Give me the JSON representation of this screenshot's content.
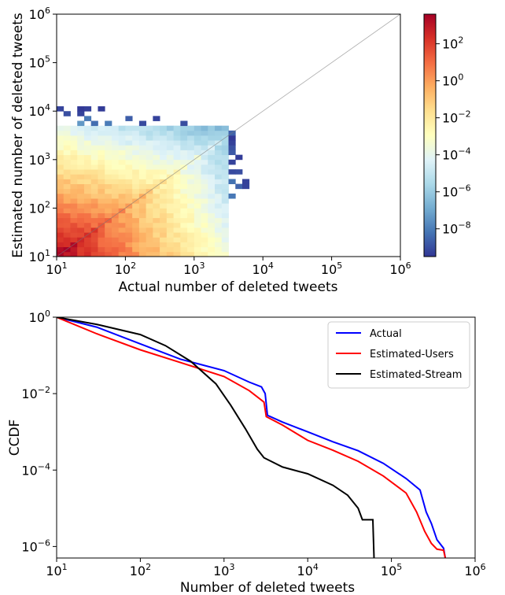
{
  "chart_data": [
    {
      "type": "heatmap",
      "xlabel": "Actual number of deleted tweets",
      "ylabel": "Estimated number of deleted tweets",
      "xscale": "log",
      "yscale": "log",
      "xlim": [
        10,
        1000000
      ],
      "ylim": [
        10,
        1000000
      ],
      "xticks": [
        {
          "base": "10",
          "exp": "1"
        },
        {
          "base": "10",
          "exp": "2"
        },
        {
          "base": "10",
          "exp": "3"
        },
        {
          "base": "10",
          "exp": "4"
        },
        {
          "base": "10",
          "exp": "5"
        },
        {
          "base": "10",
          "exp": "6"
        }
      ],
      "yticks": [
        {
          "base": "10",
          "exp": "1"
        },
        {
          "base": "10",
          "exp": "2"
        },
        {
          "base": "10",
          "exp": "3"
        },
        {
          "base": "10",
          "exp": "4"
        },
        {
          "base": "10",
          "exp": "5"
        },
        {
          "base": "10",
          "exp": "6"
        }
      ],
      "colorbar": {
        "scale": "log",
        "range_exp": [
          -9.5,
          3.6
        ],
        "colormap": "RdYlBu_r",
        "ticks": [
          {
            "base": "10",
            "exp": "2"
          },
          {
            "base": "10",
            "exp": "0"
          },
          {
            "base": "10",
            "exp": "−2"
          },
          {
            "base": "10",
            "exp": "−4"
          },
          {
            "base": "10",
            "exp": "−6"
          },
          {
            "base": "10",
            "exp": "−8"
          }
        ]
      },
      "density_description_log10": {
        "peak_near": [
          10,
          10
        ],
        "diagonal_line": true,
        "actual_cutoff": 3500,
        "estimated_cap": 5000
      },
      "grid": false
    },
    {
      "type": "line",
      "xlabel": "Number of deleted tweets",
      "ylabel": "CCDF",
      "xscale": "log",
      "yscale": "log",
      "xlim": [
        10,
        1000000
      ],
      "ylim": [
        5e-07,
        1
      ],
      "xticks": [
        {
          "base": "10",
          "exp": "1"
        },
        {
          "base": "10",
          "exp": "2"
        },
        {
          "base": "10",
          "exp": "3"
        },
        {
          "base": "10",
          "exp": "4"
        },
        {
          "base": "10",
          "exp": "5"
        },
        {
          "base": "10",
          "exp": "6"
        }
      ],
      "yticks": [
        {
          "base": "10",
          "exp": "0"
        },
        {
          "base": "10",
          "exp": "−2"
        },
        {
          "base": "10",
          "exp": "−4"
        },
        {
          "base": "10",
          "exp": "−6"
        }
      ],
      "legend_position": "top-right",
      "grid": false,
      "series": [
        {
          "name": "Actual",
          "color": "#0000ff",
          "points": [
            [
              10,
              1
            ],
            [
              30,
              0.55
            ],
            [
              100,
              0.2
            ],
            [
              300,
              0.08
            ],
            [
              1000,
              0.04
            ],
            [
              2000,
              0.02
            ],
            [
              2800,
              0.015
            ],
            [
              3100,
              0.01
            ],
            [
              3300,
              0.0027
            ],
            [
              5000,
              0.0018
            ],
            [
              10000,
              0.001
            ],
            [
              20000,
              0.00055
            ],
            [
              40000,
              0.00032
            ],
            [
              80000,
              0.00015
            ],
            [
              150000,
              6e-05
            ],
            [
              220000,
              3e-05
            ],
            [
              260000,
              8e-06
            ],
            [
              300000,
              4e-06
            ],
            [
              350000,
              1.5e-06
            ],
            [
              420000,
              9e-07
            ],
            [
              440000,
              5e-07
            ]
          ]
        },
        {
          "name": "Estimated-Users",
          "color": "#ff0000",
          "points": [
            [
              10,
              1
            ],
            [
              30,
              0.37
            ],
            [
              100,
              0.14
            ],
            [
              300,
              0.065
            ],
            [
              1000,
              0.028
            ],
            [
              2000,
              0.012
            ],
            [
              3000,
              0.006
            ],
            [
              3200,
              0.0025
            ],
            [
              5000,
              0.0015
            ],
            [
              10000,
              0.0006
            ],
            [
              20000,
              0.00033
            ],
            [
              40000,
              0.00017
            ],
            [
              80000,
              7e-05
            ],
            [
              150000,
              2.5e-05
            ],
            [
              200000,
              8e-06
            ],
            [
              250000,
              2.5e-06
            ],
            [
              300000,
              1.2e-06
            ],
            [
              350000,
              8.5e-07
            ],
            [
              420000,
              8e-07
            ],
            [
              440000,
              5e-07
            ]
          ]
        },
        {
          "name": "Estimated-Stream",
          "color": "#000000",
          "points": [
            [
              10,
              1
            ],
            [
              30,
              0.65
            ],
            [
              100,
              0.35
            ],
            [
              200,
              0.18
            ],
            [
              400,
              0.07
            ],
            [
              800,
              0.018
            ],
            [
              1200,
              0.005
            ],
            [
              1800,
              0.0012
            ],
            [
              2500,
              0.00035
            ],
            [
              3000,
              0.00021
            ],
            [
              5000,
              0.00012
            ],
            [
              10000,
              8e-05
            ],
            [
              20000,
              4e-05
            ],
            [
              30000,
              2.2e-05
            ],
            [
              40000,
              1e-05
            ],
            [
              45000,
              5e-06
            ],
            [
              60000,
              5e-06
            ],
            [
              62000,
              5e-07
            ]
          ]
        }
      ]
    }
  ]
}
